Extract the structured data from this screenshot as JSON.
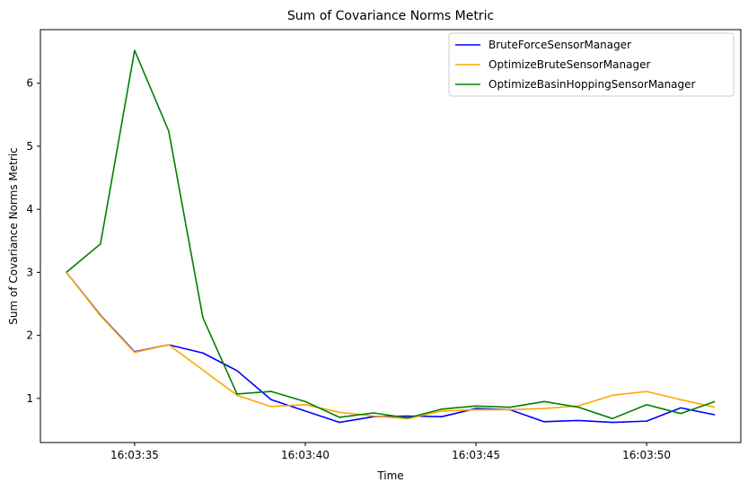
{
  "chart_data": {
    "type": "line",
    "title": "Sum of Covariance Norms Metric",
    "xlabel": "Time",
    "ylabel": "Sum of Covariance Norms Metric",
    "x": [
      "16:03:33",
      "16:03:34",
      "16:03:35",
      "16:03:36",
      "16:03:37",
      "16:03:38",
      "16:03:39",
      "16:03:40",
      "16:03:41",
      "16:03:42",
      "16:03:43",
      "16:03:44",
      "16:03:45",
      "16:03:46",
      "16:03:47",
      "16:03:48",
      "16:03:49",
      "16:03:50",
      "16:03:51",
      "16:03:52"
    ],
    "xlim": [
      "16:03:32.24",
      "16:03:52.76"
    ],
    "xticks": [
      "16:03:35",
      "16:03:40",
      "16:03:45",
      "16:03:50"
    ],
    "ylim": [
      0.3,
      6.85
    ],
    "yticks": [
      1,
      2,
      3,
      4,
      5,
      6
    ],
    "grid": false,
    "legend": "top-right",
    "series": [
      {
        "name": "BruteForceSensorManager",
        "color": "#0000ff",
        "values": [
          3.0,
          2.32,
          1.74,
          1.85,
          1.72,
          1.44,
          0.98,
          0.8,
          0.62,
          0.71,
          0.72,
          0.71,
          0.84,
          0.82,
          0.63,
          0.65,
          0.62,
          0.64,
          0.85,
          0.74
        ]
      },
      {
        "name": "OptimizeBruteSensorManager",
        "color": "#ffa500",
        "values": [
          3.0,
          2.31,
          1.73,
          1.85,
          1.45,
          1.05,
          0.87,
          0.9,
          0.78,
          0.72,
          0.68,
          0.8,
          0.82,
          0.82,
          0.84,
          0.88,
          1.05,
          1.11,
          0.98,
          0.86
        ]
      },
      {
        "name": "OptimizeBasinHoppingSensorManager",
        "color": "#008000",
        "values": [
          3.0,
          3.45,
          6.52,
          5.24,
          2.28,
          1.07,
          1.11,
          0.95,
          0.7,
          0.77,
          0.69,
          0.83,
          0.88,
          0.86,
          0.95,
          0.86,
          0.68,
          0.9,
          0.76,
          0.95
        ]
      }
    ]
  }
}
